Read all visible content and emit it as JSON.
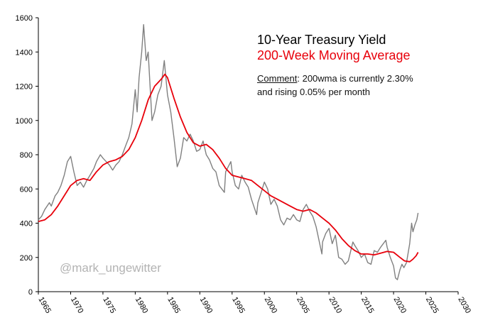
{
  "chart_data": {
    "type": "line",
    "title": "10-Year Treasury Yield",
    "subtitle": "200-Week Moving Average",
    "annotation": {
      "label": "Comment",
      "line1": ": 200wma is currently 2.30%",
      "line2": "and rising 0.05% per month"
    },
    "watermark": "@mark_ungewitter",
    "xlabel": "",
    "ylabel": "",
    "xlim": [
      1965,
      2030
    ],
    "ylim": [
      0,
      1600
    ],
    "x_ticks": [
      1965,
      1970,
      1975,
      1980,
      1985,
      1990,
      1995,
      2000,
      2005,
      2010,
      2015,
      2020,
      2025,
      2030
    ],
    "y_ticks": [
      0,
      200,
      400,
      600,
      800,
      1000,
      1200,
      1400,
      1600
    ],
    "grid": false,
    "legend": "none",
    "series": [
      {
        "color": "#808080",
        "x": [
          1965.0,
          1965.5,
          1966.0,
          1966.7,
          1967.0,
          1967.6,
          1968.0,
          1968.5,
          1969.0,
          1969.5,
          1970.0,
          1970.5,
          1971.0,
          1971.5,
          1972.0,
          1972.5,
          1973.0,
          1973.6,
          1974.0,
          1974.6,
          1975.0,
          1975.5,
          1976.0,
          1976.5,
          1977.0,
          1977.5,
          1978.0,
          1978.5,
          1979.0,
          1979.5,
          1980.0,
          1980.3,
          1980.6,
          1981.0,
          1981.3,
          1981.7,
          1982.0,
          1982.3,
          1982.6,
          1983.0,
          1983.5,
          1984.0,
          1984.5,
          1985.0,
          1985.5,
          1986.0,
          1986.5,
          1987.0,
          1987.5,
          1988.0,
          1988.5,
          1989.0,
          1989.5,
          1990.0,
          1990.5,
          1991.0,
          1991.5,
          1992.0,
          1992.5,
          1993.0,
          1993.8,
          1994.0,
          1994.8,
          1995.0,
          1995.5,
          1996.0,
          1996.5,
          1997.0,
          1997.5,
          1998.0,
          1998.8,
          1999.0,
          1999.5,
          2000.0,
          2000.5,
          2001.0,
          2001.5,
          2002.0,
          2002.5,
          2003.0,
          2003.5,
          2004.0,
          2004.5,
          2005.0,
          2005.5,
          2006.0,
          2006.5,
          2007.0,
          2007.5,
          2008.0,
          2008.9,
          2009.0,
          2009.5,
          2010.0,
          2010.5,
          2011.0,
          2011.5,
          2012.0,
          2012.5,
          2013.0,
          2013.7,
          2014.0,
          2014.5,
          2015.0,
          2015.5,
          2016.0,
          2016.5,
          2017.0,
          2017.5,
          2018.0,
          2018.8,
          2019.0,
          2019.5,
          2020.0,
          2020.3,
          2020.6,
          2021.0,
          2021.3,
          2021.6,
          2022.0,
          2022.5,
          2022.8,
          2023.0,
          2023.3,
          2023.6,
          2023.8
        ],
        "values": [
          420,
          440,
          480,
          520,
          500,
          560,
          580,
          620,
          680,
          760,
          790,
          700,
          620,
          640,
          610,
          650,
          680,
          720,
          760,
          800,
          780,
          760,
          740,
          710,
          740,
          760,
          800,
          850,
          900,
          980,
          1180,
          1050,
          1250,
          1400,
          1560,
          1350,
          1400,
          1200,
          1000,
          1050,
          1150,
          1200,
          1350,
          1150,
          1050,
          900,
          730,
          780,
          900,
          880,
          920,
          880,
          820,
          830,
          880,
          800,
          770,
          720,
          700,
          620,
          580,
          700,
          760,
          700,
          620,
          600,
          680,
          640,
          610,
          540,
          450,
          520,
          580,
          640,
          600,
          510,
          540,
          500,
          420,
          390,
          430,
          420,
          450,
          420,
          410,
          480,
          510,
          470,
          440,
          380,
          220,
          290,
          340,
          370,
          280,
          330,
          200,
          190,
          160,
          180,
          290,
          270,
          240,
          200,
          220,
          170,
          160,
          240,
          230,
          260,
          300,
          260,
          200,
          150,
          80,
          70,
          130,
          160,
          140,
          170,
          280,
          400,
          350,
          390,
          420,
          460
        ]
      },
      {
        "color": "#e8000b",
        "x": [
          1965.0,
          1966.0,
          1967.0,
          1968.0,
          1969.0,
          1970.0,
          1971.0,
          1972.0,
          1973.0,
          1974.0,
          1975.0,
          1976.0,
          1977.0,
          1978.0,
          1979.0,
          1980.0,
          1981.0,
          1982.0,
          1983.0,
          1984.0,
          1984.6,
          1985.0,
          1986.0,
          1987.0,
          1988.0,
          1989.0,
          1990.0,
          1991.0,
          1992.0,
          1993.0,
          1994.0,
          1995.0,
          1996.0,
          1997.0,
          1998.0,
          1999.0,
          2000.0,
          2001.0,
          2002.0,
          2003.0,
          2004.0,
          2005.0,
          2006.0,
          2007.0,
          2008.0,
          2009.0,
          2010.0,
          2011.0,
          2012.0,
          2013.0,
          2014.0,
          2015.0,
          2016.0,
          2017.0,
          2018.0,
          2019.0,
          2020.0,
          2021.0,
          2021.7,
          2022.5,
          2023.0,
          2023.5,
          2023.8
        ],
        "values": [
          410,
          420,
          450,
          500,
          560,
          620,
          650,
          660,
          650,
          700,
          740,
          760,
          770,
          790,
          830,
          900,
          1000,
          1120,
          1200,
          1240,
          1270,
          1250,
          1130,
          1020,
          930,
          870,
          850,
          860,
          830,
          780,
          720,
          680,
          670,
          660,
          650,
          620,
          590,
          560,
          540,
          520,
          500,
          480,
          470,
          480,
          460,
          430,
          400,
          360,
          310,
          270,
          240,
          220,
          220,
          215,
          225,
          235,
          230,
          200,
          180,
          175,
          190,
          210,
          230
        ]
      }
    ]
  }
}
